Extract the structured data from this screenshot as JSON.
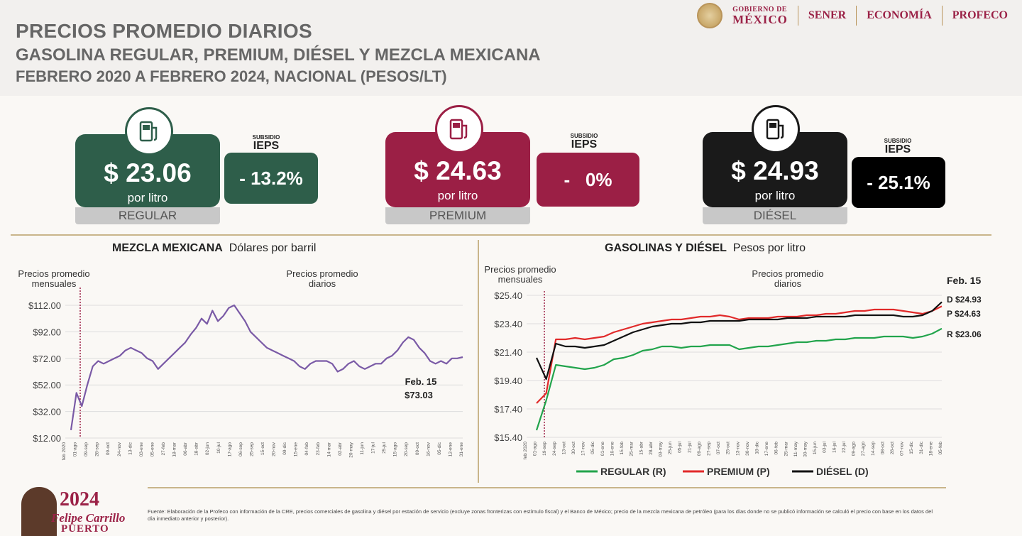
{
  "header": {
    "title_line1": "PRECIOS PROMEDIO DIARIOS",
    "title_line2": "GASOLINA REGULAR, PREMIUM, DIÉSEL Y MEZCLA MEXICANA",
    "title_line3": "FEBRERO 2020 A FEBRERO 2024, NACIONAL (PESOS/LT)"
  },
  "logos": {
    "gob_small": "GOBIERNO DE",
    "gob_big": "MÉXICO",
    "sener": "SENER",
    "economia": "ECONOMÍA",
    "profeco": "PROFECO"
  },
  "cards": [
    {
      "price": "$ 23.06",
      "unit": "por litro",
      "name": "REGULAR",
      "color": "#2e5e4a",
      "ieps_small": "SUBSIDIO",
      "ieps_big": "IEPS",
      "subsidy": "- 13.2%",
      "icon": "fuel-pump-icon"
    },
    {
      "price": "$ 24.63",
      "unit": "por litro",
      "name": "PREMIUM",
      "color": "#9b1f45",
      "ieps_small": "SUBSIDIO",
      "ieps_big": "IEPS",
      "subsidy": "-   0%",
      "icon": "fuel-pump-icon"
    },
    {
      "price": "$ 24.93",
      "unit": "por litro",
      "name": "DIÉSEL",
      "color": "#1a1a1a",
      "ieps_small": "SUBSIDIO",
      "ieps_big": "IEPS",
      "subsidy": "- 25.1%",
      "icon": "fuel-pump-icon"
    }
  ],
  "chart_data": [
    {
      "type": "line",
      "title": "MEZCLA MEXICANA",
      "subtitle": "Dólares por barril",
      "annot_monthly": [
        "Precios promedio",
        "mensuales"
      ],
      "annot_daily": [
        "Precios promedio",
        "diarios"
      ],
      "yticks": [
        "$112.00",
        "$92.00",
        "$72.00",
        "$52.00",
        "$32.00",
        "$12.00"
      ],
      "ylim": [
        12,
        112
      ],
      "xticks": [
        "feb 2020",
        "01-ago",
        "09-sep",
        "28-sep",
        "09-oct",
        "24-nov",
        "13-dic",
        "03-ene",
        "05-ene",
        "27-feb",
        "18-mar",
        "06-abr",
        "18-abr",
        "02-jun",
        "10-jul",
        "17-ago",
        "06-sep",
        "25-sep",
        "15-oct",
        "20-nov",
        "09-dic",
        "15-ene",
        "04-feb",
        "23-feb",
        "14-mar",
        "02-abr",
        "20-may",
        "11-jun",
        "17-jul",
        "25-jul",
        "15-ago",
        "20-sep",
        "09-oct",
        "16-nov",
        "05-dic",
        "12-ene",
        "31-ene"
      ],
      "series": [
        {
          "color": "#7a5aa6",
          "values": [
            18,
            46,
            36,
            52,
            66,
            70,
            68,
            70,
            72,
            74,
            78,
            80,
            78,
            76,
            72,
            70,
            64,
            68,
            72,
            76,
            80,
            84,
            90,
            95,
            102,
            98,
            108,
            100,
            104,
            110,
            112,
            106,
            100,
            92,
            88,
            84,
            80,
            78,
            76,
            74,
            72,
            70,
            66,
            64,
            68,
            70,
            70,
            70,
            68,
            62,
            64,
            68,
            70,
            66,
            64,
            66,
            68,
            68,
            72,
            74,
            78,
            84,
            88,
            86,
            80,
            76,
            70,
            68,
            70,
            68,
            72,
            72,
            73.03
          ]
        }
      ],
      "annotation": [
        "Feb. 15",
        "$73.03"
      ]
    },
    {
      "type": "line",
      "title": "GASOLINAS Y DIÉSEL",
      "subtitle": "Pesos por litro",
      "annot_monthly": [
        "Precios promedio",
        "mensuales"
      ],
      "annot_daily": [
        "Precios promedio",
        "diarios"
      ],
      "yticks": [
        "$25.40",
        "$23.40",
        "$21.40",
        "$19.40",
        "$17.40",
        "$15.40"
      ],
      "ylim": [
        15.4,
        25.4
      ],
      "xticks": [
        "feb 2020",
        "01-ago",
        "19-sep",
        "24-sep",
        "13-oct",
        "30-oct",
        "17-nov",
        "05-dic",
        "01-ene",
        "16-ene",
        "15-feb",
        "25-mar",
        "15-abr",
        "28-abr",
        "03-may",
        "25-jun",
        "05-jul",
        "21-jul",
        "09-ago",
        "27-sep",
        "07-oct",
        "25-oct",
        "13-nov",
        "30-nov",
        "18-dic",
        "17-ene",
        "06-feb",
        "25-mar",
        "11-may",
        "30-may",
        "15-jun",
        "03-jul",
        "16-jul",
        "22-jul",
        "09-ago",
        "27-ago",
        "14-sep",
        "08-oct",
        "28-oct",
        "07-nov",
        "15-dic",
        "31-dic",
        "18-ene",
        "05-feb"
      ],
      "series": [
        {
          "name": "REGULAR (R)",
          "color": "#22a44c",
          "values": [
            15.9,
            18.0,
            20.5,
            20.4,
            20.3,
            20.2,
            20.3,
            20.5,
            20.9,
            21.0,
            21.2,
            21.5,
            21.6,
            21.8,
            21.8,
            21.7,
            21.8,
            21.8,
            21.9,
            21.9,
            21.9,
            21.6,
            21.7,
            21.8,
            21.8,
            21.9,
            22.0,
            22.1,
            22.1,
            22.2,
            22.2,
            22.3,
            22.3,
            22.4,
            22.4,
            22.4,
            22.5,
            22.5,
            22.5,
            22.4,
            22.5,
            22.7,
            23.06
          ]
        },
        {
          "name": "PREMIUM (P)",
          "color": "#e12a2a",
          "values": [
            17.8,
            18.5,
            22.3,
            22.3,
            22.4,
            22.3,
            22.4,
            22.5,
            22.8,
            23.0,
            23.2,
            23.4,
            23.5,
            23.6,
            23.7,
            23.7,
            23.8,
            23.9,
            23.9,
            24.0,
            23.9,
            23.7,
            23.8,
            23.8,
            23.8,
            23.9,
            23.9,
            23.9,
            24.0,
            24.0,
            24.1,
            24.1,
            24.2,
            24.3,
            24.3,
            24.4,
            24.4,
            24.4,
            24.3,
            24.2,
            24.1,
            24.3,
            24.63
          ]
        },
        {
          "name": "DIÉSEL (D)",
          "color": "#111111",
          "values": [
            21.0,
            19.5,
            22.0,
            21.8,
            21.8,
            21.7,
            21.8,
            21.9,
            22.2,
            22.5,
            22.8,
            23.0,
            23.2,
            23.3,
            23.4,
            23.4,
            23.5,
            23.5,
            23.6,
            23.6,
            23.6,
            23.6,
            23.7,
            23.7,
            23.7,
            23.7,
            23.8,
            23.8,
            23.8,
            23.9,
            23.9,
            23.9,
            23.9,
            24.0,
            24.0,
            24.0,
            24.0,
            24.0,
            23.9,
            23.9,
            24.0,
            24.3,
            24.93
          ]
        }
      ],
      "annotation_date": "Feb. 15",
      "end_labels": [
        "D $24.93",
        "P $24.63",
        "R $23.06"
      ],
      "legend": [
        "REGULAR (R)",
        "PREMIUM (P)",
        "DIÉSEL (D)"
      ]
    }
  ],
  "footer": {
    "source": "Fuente: Elaboración de la Profeco con información de la CRE, precios comerciales de gasolina y diésel por estación de servicio (excluye zonas fronterizas con estímulo fiscal) y el Banco de México; precio de la mezcla mexicana de petróleo (para los días donde no se publicó información se calculó el precio con base en los datos del día inmediato anterior y posterior).",
    "brand_year": "2024",
    "brand_name": "Felipe Carrillo",
    "brand_last": "PUERTO"
  }
}
